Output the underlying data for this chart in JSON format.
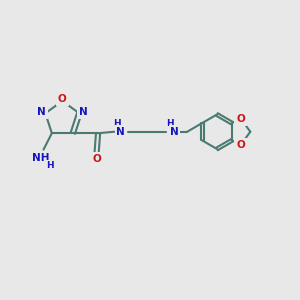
{
  "bg": "#e8e8e8",
  "bc": "#4a7a70",
  "Nc": "#1515bb",
  "Oc": "#cc1515",
  "lw": 1.5,
  "fs": 7.5,
  "hfs": 6.5,
  "xlim": [
    0,
    10
  ],
  "ylim": [
    0,
    10
  ]
}
